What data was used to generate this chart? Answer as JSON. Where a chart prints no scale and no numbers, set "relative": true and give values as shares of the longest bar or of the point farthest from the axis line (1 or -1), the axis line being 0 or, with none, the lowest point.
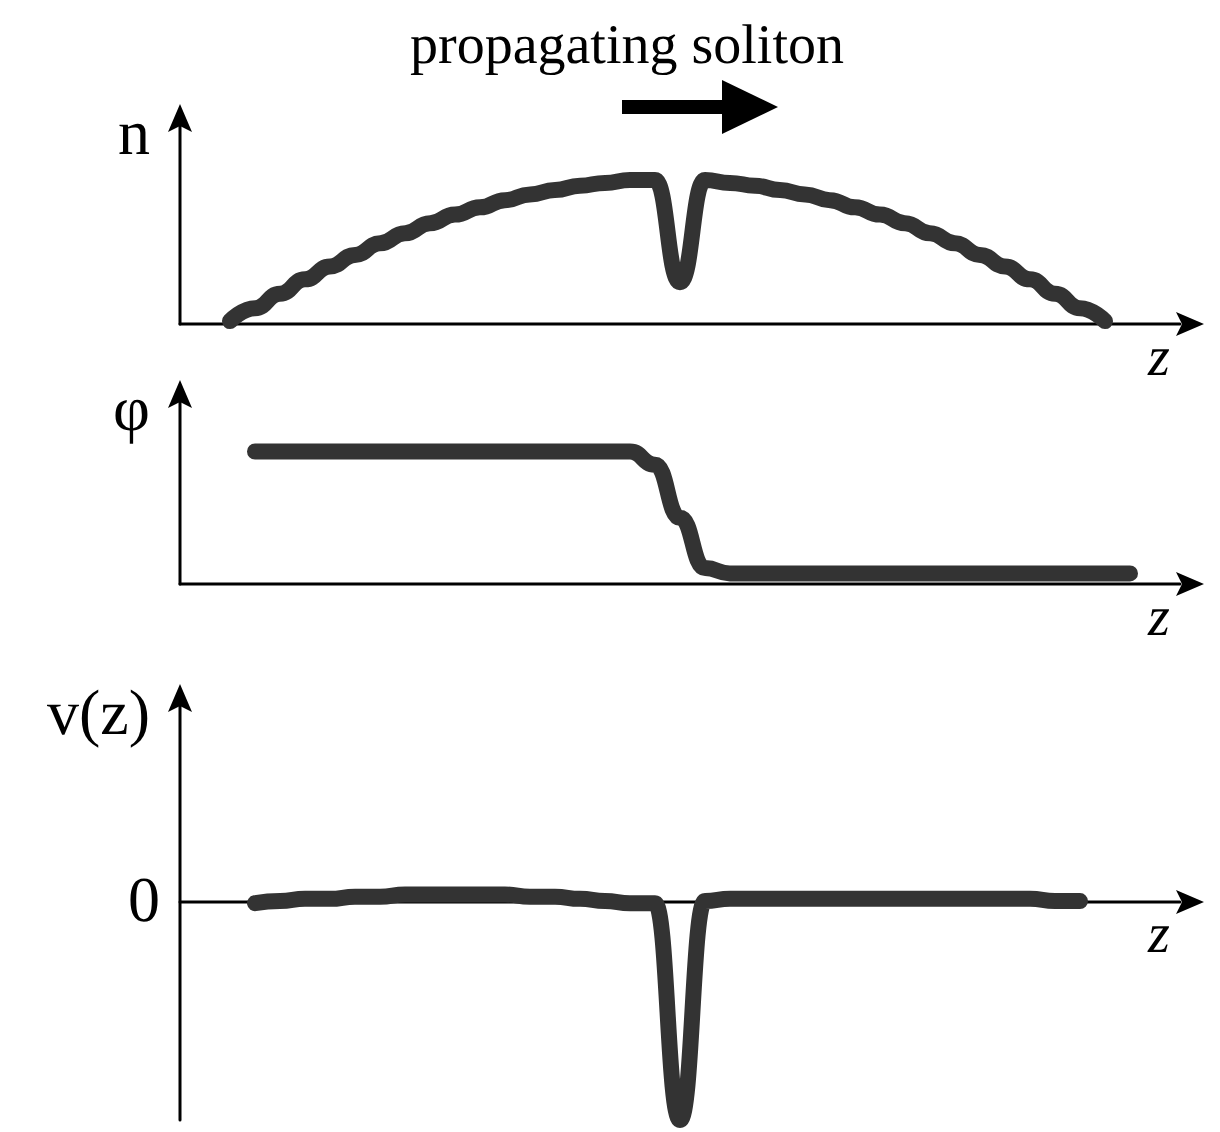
{
  "chart_data": [
    {
      "type": "line",
      "title": "propagating soliton",
      "xlabel": "z",
      "ylabel": "n",
      "relative": true,
      "line_style": "solid",
      "grid": false,
      "tick_labels": false,
      "categories": [
        null,
        null,
        null,
        null,
        null,
        null,
        null,
        null,
        null,
        null,
        null,
        null,
        null,
        null,
        null,
        null,
        null,
        null,
        null,
        null,
        null,
        null,
        null,
        null,
        null,
        null,
        null,
        null,
        null,
        null,
        null,
        null,
        null,
        null,
        null,
        null,
        null,
        null,
        null,
        null,
        null
      ],
      "series": [
        {
          "color": "#333333",
          "values": [
            null,
            null,
            0.02,
            0.11,
            0.21,
            0.31,
            0.4,
            0.48,
            0.56,
            0.63,
            0.7,
            0.76,
            0.81,
            0.86,
            0.9,
            0.93,
            0.96,
            0.98,
            1.0,
            1.0,
            0.29,
            1.0,
            0.98,
            0.96,
            0.93,
            0.9,
            0.86,
            0.81,
            0.76,
            0.7,
            0.63,
            0.56,
            0.48,
            0.4,
            0.31,
            0.21,
            0.11,
            0.02,
            null,
            null,
            null
          ]
        }
      ]
    },
    {
      "type": "line",
      "xlabel": "z",
      "ylabel": "φ",
      "relative": true,
      "line_style": "solid",
      "grid": false,
      "tick_labels": false,
      "categories": [
        null,
        null,
        null,
        null,
        null,
        null,
        null,
        null,
        null,
        null,
        null,
        null,
        null,
        null,
        null,
        null,
        null,
        null,
        null,
        null,
        null,
        null,
        null,
        null,
        null,
        null,
        null,
        null,
        null,
        null,
        null,
        null,
        null,
        null,
        null,
        null,
        null,
        null,
        null,
        null,
        null
      ],
      "series": [
        {
          "color": "#333333",
          "values": [
            null,
            null,
            null,
            1.0,
            1.0,
            1.0,
            1.0,
            1.0,
            1.0,
            1.0,
            1.0,
            1.0,
            1.0,
            1.0,
            1.0,
            1.0,
            1.0,
            1.0,
            1.0,
            0.9,
            0.5,
            0.12,
            0.08,
            0.08,
            0.08,
            0.08,
            0.08,
            0.08,
            0.08,
            0.08,
            0.08,
            0.08,
            0.08,
            0.08,
            0.08,
            0.08,
            0.08,
            0.08,
            0.08,
            null,
            null
          ]
        }
      ]
    },
    {
      "type": "line",
      "xlabel": "z",
      "ylabel": "v(z)",
      "relative": true,
      "line_style": "solid",
      "grid": false,
      "tick_labels": false,
      "annotations": [
        "0"
      ],
      "categories": [
        null,
        null,
        null,
        null,
        null,
        null,
        null,
        null,
        null,
        null,
        null,
        null,
        null,
        null,
        null,
        null,
        null,
        null,
        null,
        null,
        null,
        null,
        null,
        null,
        null,
        null,
        null,
        null,
        null,
        null,
        null,
        null,
        null,
        null,
        null,
        null,
        null,
        null,
        null,
        null,
        null
      ],
      "series": [
        {
          "color": "#333333",
          "values": [
            null,
            null,
            null,
            -0.01,
            0.0,
            0.01,
            0.01,
            0.02,
            0.02,
            0.03,
            0.03,
            0.03,
            0.03,
            0.03,
            0.02,
            0.02,
            0.01,
            0.0,
            -0.01,
            -0.01,
            -1,
            0.0,
            0.01,
            0.01,
            0.01,
            0.01,
            0.01,
            0.01,
            0.01,
            0.01,
            0.01,
            0.01,
            0.01,
            0.01,
            0.01,
            0.0,
            0.0,
            null,
            null,
            null,
            null
          ]
        }
      ]
    }
  ]
}
